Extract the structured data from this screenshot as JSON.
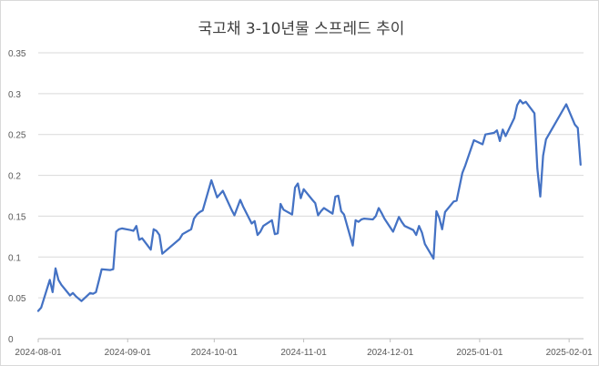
{
  "chart_data": {
    "type": "line",
    "title": "국고채 3-10년물 스프레드 추이",
    "xlabel": "",
    "ylabel": "",
    "ylim": [
      0,
      0.35
    ],
    "yticks": [
      0,
      0.05,
      0.1,
      0.15,
      0.2,
      0.25,
      0.3,
      0.35
    ],
    "ytick_labels": [
      "0",
      "0.05",
      "0.1",
      "0.15",
      "0.2",
      "0.25",
      "0.3",
      "0.35"
    ],
    "xlim": [
      "2024-08-01",
      "2025-02-06"
    ],
    "xticks": [
      "2024-08-01",
      "2024-09-01",
      "2024-10-01",
      "2024-11-01",
      "2024-12-01",
      "2025-01-01",
      "2025-02-01"
    ],
    "grid": true,
    "legend": "none",
    "colors": {
      "series": "#4472c4",
      "grid": "#d9d9d9",
      "text": "#595959"
    },
    "series": [
      {
        "x": [
          "2024-08-01",
          "2024-08-02",
          "2024-08-05",
          "2024-08-06",
          "2024-08-07",
          "2024-08-08",
          "2024-08-09",
          "2024-08-12",
          "2024-08-13",
          "2024-08-14",
          "2024-08-16",
          "2024-08-19",
          "2024-08-20",
          "2024-08-21",
          "2024-08-22",
          "2024-08-23",
          "2024-08-26",
          "2024-08-27",
          "2024-08-28",
          "2024-08-29",
          "2024-08-30",
          "2024-09-02",
          "2024-09-03",
          "2024-09-04",
          "2024-09-05",
          "2024-09-06",
          "2024-09-09",
          "2024-09-10",
          "2024-09-11",
          "2024-09-12",
          "2024-09-13",
          "2024-09-19",
          "2024-09-20",
          "2024-09-23",
          "2024-09-24",
          "2024-09-25",
          "2024-09-26",
          "2024-09-27",
          "2024-09-30",
          "2024-10-02",
          "2024-10-04",
          "2024-10-07",
          "2024-10-08",
          "2024-10-10",
          "2024-10-11",
          "2024-10-14",
          "2024-10-15",
          "2024-10-16",
          "2024-10-17",
          "2024-10-18",
          "2024-10-21",
          "2024-10-22",
          "2024-10-23",
          "2024-10-24",
          "2024-10-25",
          "2024-10-28",
          "2024-10-29",
          "2024-10-30",
          "2024-10-31",
          "2024-11-01",
          "2024-11-04",
          "2024-11-05",
          "2024-11-06",
          "2024-11-07",
          "2024-11-08",
          "2024-11-11",
          "2024-11-12",
          "2024-11-13",
          "2024-11-14",
          "2024-11-15",
          "2024-11-18",
          "2024-11-19",
          "2024-11-20",
          "2024-11-21",
          "2024-11-22",
          "2024-11-25",
          "2024-11-26",
          "2024-11-27",
          "2024-11-28",
          "2024-11-29",
          "2024-12-02",
          "2024-12-03",
          "2024-12-04",
          "2024-12-05",
          "2024-12-06",
          "2024-12-09",
          "2024-12-10",
          "2024-12-11",
          "2024-12-12",
          "2024-12-13",
          "2024-12-16",
          "2024-12-17",
          "2024-12-18",
          "2024-12-19",
          "2024-12-20",
          "2024-12-23",
          "2024-12-24",
          "2024-12-26",
          "2024-12-27",
          "2024-12-30",
          "2025-01-02",
          "2025-01-03",
          "2025-01-06",
          "2025-01-07",
          "2025-01-08",
          "2025-01-09",
          "2025-01-10",
          "2025-01-13",
          "2025-01-14",
          "2025-01-15",
          "2025-01-16",
          "2025-01-17",
          "2025-01-20",
          "2025-01-21",
          "2025-01-22",
          "2025-01-23",
          "2025-01-24",
          "2025-01-31",
          "2025-02-03",
          "2025-02-04",
          "2025-02-05"
        ],
        "values": [
          0.034,
          0.038,
          0.072,
          0.057,
          0.086,
          0.072,
          0.066,
          0.053,
          0.056,
          0.052,
          0.046,
          0.056,
          0.055,
          0.057,
          0.071,
          0.085,
          0.084,
          0.085,
          0.131,
          0.134,
          0.135,
          0.133,
          0.132,
          0.138,
          0.121,
          0.123,
          0.109,
          0.134,
          0.132,
          0.127,
          0.104,
          0.122,
          0.128,
          0.134,
          0.147,
          0.152,
          0.155,
          0.157,
          0.194,
          0.173,
          0.181,
          0.158,
          0.151,
          0.17,
          0.162,
          0.141,
          0.144,
          0.127,
          0.131,
          0.138,
          0.145,
          0.128,
          0.129,
          0.165,
          0.158,
          0.152,
          0.185,
          0.19,
          0.172,
          0.183,
          0.17,
          0.166,
          0.151,
          0.156,
          0.16,
          0.153,
          0.174,
          0.175,
          0.156,
          0.152,
          0.114,
          0.145,
          0.143,
          0.146,
          0.147,
          0.146,
          0.15,
          0.16,
          0.154,
          0.147,
          0.131,
          0.14,
          0.149,
          0.143,
          0.138,
          0.133,
          0.127,
          0.138,
          0.13,
          0.116,
          0.098,
          0.156,
          0.148,
          0.134,
          0.155,
          0.168,
          0.169,
          0.203,
          0.212,
          0.243,
          0.238,
          0.25,
          0.252,
          0.255,
          0.242,
          0.256,
          0.248,
          0.27,
          0.286,
          0.292,
          0.288,
          0.29,
          0.276,
          0.208,
          0.174,
          0.224,
          0.244,
          0.287,
          0.262,
          0.258,
          0.213
        ]
      }
    ]
  }
}
